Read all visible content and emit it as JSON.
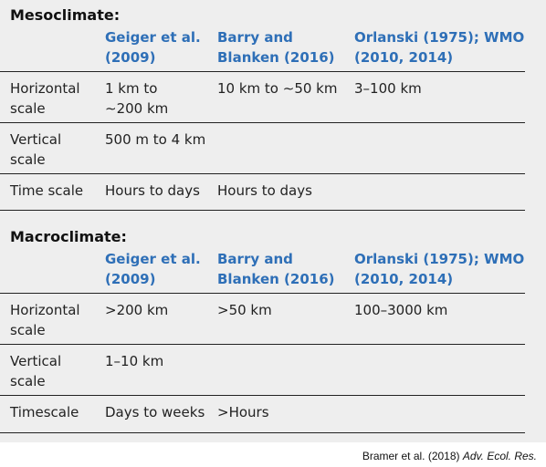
{
  "meso": {
    "title": "Mesoclimate:",
    "headers": {
      "geiger_1": "Geiger et al.",
      "geiger_2": "(2009)",
      "barry_1": "Barry and",
      "barry_2": "Blanken (2016)",
      "orl_1": "Orlanski (1975); WMO",
      "orl_2": "(2010, 2014)"
    },
    "rows": {
      "horizontal": {
        "label_1": "Horizontal",
        "label_2": "scale",
        "geiger_1": "1 km to",
        "geiger_2": "∼200 km",
        "barry": "10 km to ∼50 km",
        "orlanski": "3–100 km"
      },
      "vertical": {
        "label_1": "Vertical",
        "label_2": "scale",
        "geiger": "500 m to 4 km"
      },
      "time": {
        "label": "Time scale",
        "geiger": "Hours to days",
        "barry": "Hours to days"
      }
    }
  },
  "macro": {
    "title": "Macroclimate:",
    "headers": {
      "geiger_1": "Geiger et al.",
      "geiger_2": "(2009)",
      "barry_1": "Barry and",
      "barry_2": "Blanken (2016)",
      "orl_1": "Orlanski (1975); WMO",
      "orl_2": "(2010, 2014)"
    },
    "rows": {
      "horizontal": {
        "label_1": "Horizontal",
        "label_2": "scale",
        "geiger": ">200 km",
        "barry": ">50 km",
        "orlanski": "100–3000 km"
      },
      "vertical": {
        "label_1": "Vertical",
        "label_2": "scale",
        "geiger": "1–10 km"
      },
      "time": {
        "label": "Timescale",
        "geiger": "Days to weeks",
        "barry": ">Hours"
      }
    }
  },
  "caption": {
    "authors": "Bramer et al. (2018) ",
    "journal": "Adv. Ecol. Res."
  }
}
